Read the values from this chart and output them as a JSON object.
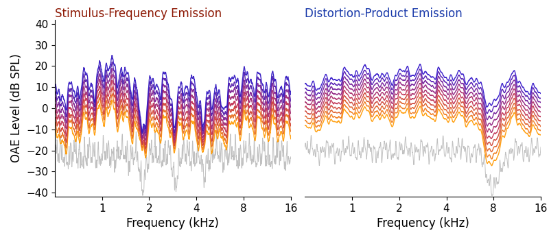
{
  "title_left": "Stimulus-Frequency Emission",
  "title_right": "Distortion-Product Emission",
  "title_left_color": "#8B1500",
  "title_right_color": "#1A3AAA",
  "ylabel": "OAE Level (dB SPL)",
  "xlabel": "Frequency (kHz)",
  "ylim": [
    -42,
    42
  ],
  "yticks": [
    -40,
    -30,
    -20,
    -10,
    0,
    10,
    20,
    30,
    40
  ],
  "freq_min": 0.5,
  "freq_max": 16,
  "xticks": [
    1,
    2,
    4,
    8,
    16
  ],
  "sfoae_n_curves": 8,
  "dpoae_n_curves": 10,
  "line_colors_sfoae": [
    "#FF9900",
    "#E87020",
    "#D04030",
    "#C03050",
    "#A02870",
    "#802090",
    "#5018A8",
    "#3015C0"
  ],
  "line_colors_dpoae": [
    "#FF9900",
    "#F07818",
    "#E06028",
    "#D04838",
    "#C03050",
    "#A82868",
    "#902080",
    "#701898",
    "#5015B0",
    "#3012C8"
  ],
  "noise_color": "#C0C0C0",
  "background_color": "#FFFFFF",
  "linewidth": 1.0,
  "noise_linewidth": 0.7,
  "title_fontsize": 12,
  "label_fontsize": 12,
  "tick_fontsize": 11
}
